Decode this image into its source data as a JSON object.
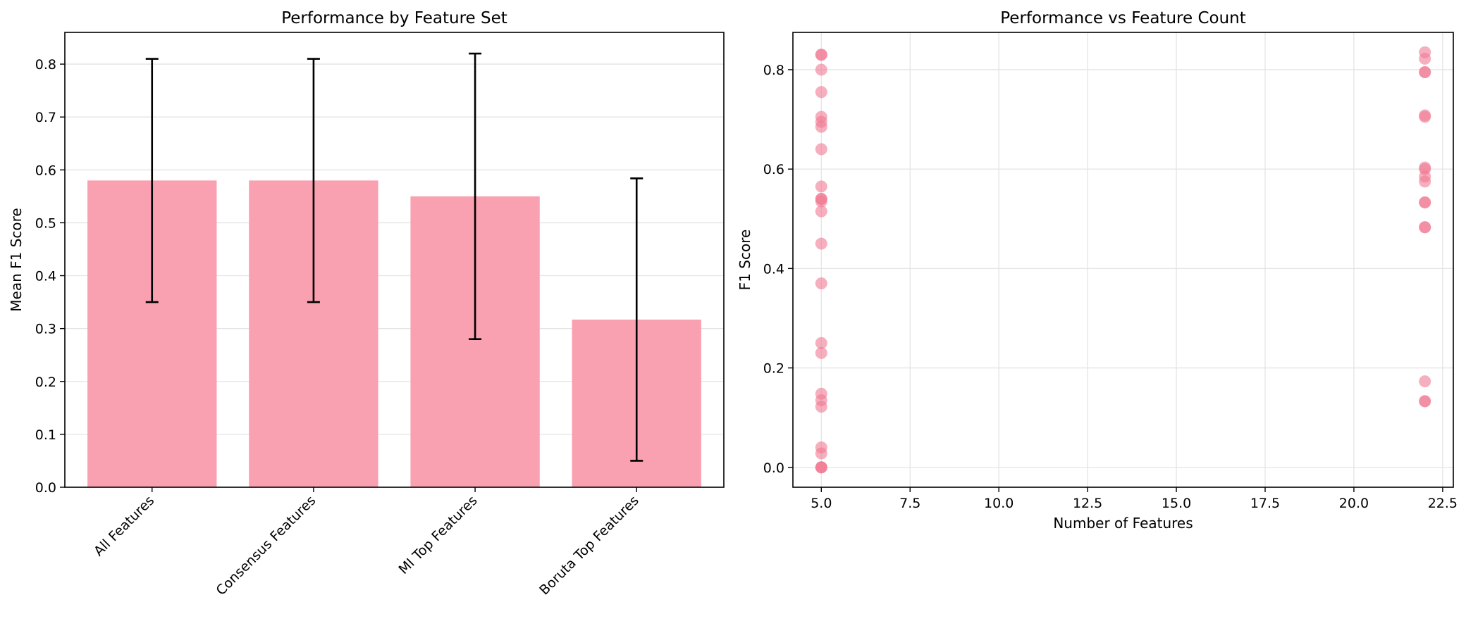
{
  "chart_data": [
    {
      "type": "bar",
      "title": "Performance by Feature Set",
      "xlabel": "",
      "ylabel": "Mean F1 Score",
      "categories": [
        "All Features",
        "Consensus Features",
        "MI Top Features",
        "Boruta Top Features"
      ],
      "values": [
        0.58,
        0.58,
        0.55,
        0.317
      ],
      "error": [
        0.23,
        0.23,
        0.27,
        0.267
      ],
      "ylim": [
        0,
        0.86
      ],
      "yticks": [
        0.0,
        0.1,
        0.2,
        0.3,
        0.4,
        0.5,
        0.6,
        0.7,
        0.8
      ],
      "ytick_labels": [
        "0.0",
        "0.1",
        "0.2",
        "0.3",
        "0.4",
        "0.5",
        "0.6",
        "0.7",
        "0.8"
      ],
      "grid": "y",
      "color": "#f9a0b1"
    },
    {
      "type": "scatter",
      "title": "Performance vs Feature Count",
      "xlabel": "Number of Features",
      "ylabel": "F1 Score",
      "xlim": [
        4.2,
        22.8
      ],
      "ylim": [
        -0.04,
        0.875
      ],
      "xticks": [
        5.0,
        7.5,
        10.0,
        12.5,
        15.0,
        17.5,
        20.0,
        22.5
      ],
      "xtick_labels": [
        "5.0",
        "7.5",
        "10.0",
        "12.5",
        "15.0",
        "17.5",
        "20.0",
        "22.5"
      ],
      "yticks": [
        0.0,
        0.2,
        0.4,
        0.6,
        0.8
      ],
      "ytick_labels": [
        "0.0",
        "0.2",
        "0.4",
        "0.6",
        "0.8"
      ],
      "grid": "both",
      "color": "#f07a93",
      "x": [
        5,
        5,
        5,
        5,
        5,
        5,
        5,
        5,
        5,
        5,
        5,
        5,
        5,
        5,
        5,
        5,
        5,
        5,
        5,
        5,
        5,
        5,
        5,
        5,
        5,
        22,
        22,
        22,
        22,
        22,
        22,
        22,
        22,
        22,
        22,
        22,
        22,
        22,
        22,
        22,
        22,
        22
      ],
      "y": [
        0.83,
        0.83,
        0.8,
        0.755,
        0.705,
        0.695,
        0.685,
        0.64,
        0.565,
        0.54,
        0.54,
        0.535,
        0.515,
        0.45,
        0.37,
        0.25,
        0.23,
        0.148,
        0.135,
        0.122,
        0.04,
        0.028,
        0.0,
        0.0,
        0.0,
        0.835,
        0.822,
        0.795,
        0.795,
        0.708,
        0.705,
        0.603,
        0.6,
        0.585,
        0.575,
        0.533,
        0.533,
        0.483,
        0.483,
        0.173,
        0.133,
        0.133
      ]
    }
  ]
}
